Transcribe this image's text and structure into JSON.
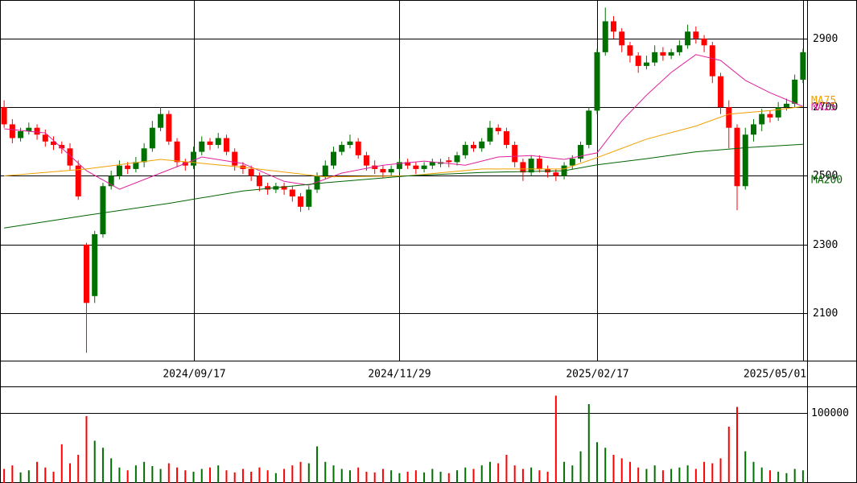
{
  "chart_data": {
    "type": "candlestick",
    "categories": [
      null,
      null,
      null,
      null,
      null,
      null,
      null,
      null,
      null,
      null,
      null,
      null,
      null,
      null,
      null,
      null,
      null,
      null,
      null,
      null,
      null,
      null,
      null,
      "2024/09/17",
      null,
      null,
      null,
      null,
      null,
      null,
      null,
      null,
      null,
      null,
      null,
      null,
      null,
      null,
      null,
      null,
      null,
      null,
      null,
      null,
      null,
      null,
      null,
      null,
      "2024/11/29",
      null,
      null,
      null,
      null,
      null,
      null,
      null,
      null,
      null,
      null,
      null,
      null,
      null,
      null,
      null,
      null,
      null,
      null,
      null,
      null,
      null,
      null,
      null,
      "2025/02/17",
      null,
      null,
      null,
      null,
      null,
      null,
      null,
      null,
      null,
      null,
      null,
      null,
      null,
      null,
      null,
      null,
      null,
      null,
      null,
      null,
      null,
      null,
      null,
      null,
      "2025/05/01"
    ],
    "open": [
      2700,
      2650,
      2610,
      2630,
      2640,
      2620,
      2600,
      2590,
      2580,
      2530,
      2300,
      2150,
      2330,
      2470,
      2500,
      2530,
      2520,
      2540,
      2580,
      2640,
      2680,
      2600,
      2540,
      2530,
      2570,
      2600,
      2590,
      2610,
      2570,
      2530,
      2520,
      2500,
      2470,
      2460,
      2470,
      2460,
      2440,
      2410,
      2460,
      2500,
      2530,
      2570,
      2590,
      2600,
      2560,
      2530,
      2520,
      2510,
      2520,
      2540,
      2530,
      2520,
      2530,
      2535,
      2545,
      2540,
      2560,
      2590,
      2580,
      2600,
      2640,
      2630,
      2590,
      2540,
      2510,
      2550,
      2520,
      2510,
      2500,
      2530,
      2550,
      2590,
      2690,
      2860,
      2950,
      2920,
      2880,
      2850,
      2820,
      2830,
      2860,
      2850,
      2860,
      2880,
      2920,
      2900,
      2880,
      2790,
      2700,
      2640,
      2470,
      2620,
      2650,
      2680,
      2670,
      2700,
      2710,
      2780
    ],
    "high": [
      2720,
      2665,
      2640,
      2655,
      2650,
      2635,
      2615,
      2600,
      2595,
      2545,
      2305,
      2340,
      2480,
      2515,
      2545,
      2540,
      2555,
      2595,
      2660,
      2700,
      2690,
      2610,
      2550,
      2585,
      2615,
      2610,
      2625,
      2620,
      2580,
      2540,
      2530,
      2510,
      2480,
      2480,
      2480,
      2470,
      2450,
      2470,
      2510,
      2545,
      2585,
      2600,
      2620,
      2610,
      2570,
      2545,
      2530,
      2530,
      2550,
      2550,
      2540,
      2540,
      2550,
      2550,
      2555,
      2570,
      2600,
      2600,
      2610,
      2660,
      2650,
      2640,
      2600,
      2550,
      2560,
      2560,
      2530,
      2520,
      2540,
      2560,
      2600,
      2700,
      2870,
      2990,
      2965,
      2930,
      2890,
      2860,
      2850,
      2880,
      2875,
      2870,
      2895,
      2940,
      2935,
      2910,
      2890,
      2800,
      2720,
      2650,
      2640,
      2665,
      2695,
      2690,
      2715,
      2725,
      2795,
      2870
    ],
    "low": [
      2640,
      2595,
      2600,
      2620,
      2605,
      2585,
      2575,
      2565,
      2515,
      2430,
      1985,
      2130,
      2320,
      2460,
      2490,
      2505,
      2510,
      2525,
      2570,
      2630,
      2590,
      2525,
      2515,
      2520,
      2560,
      2575,
      2580,
      2560,
      2515,
      2505,
      2485,
      2455,
      2445,
      2450,
      2445,
      2425,
      2395,
      2400,
      2450,
      2490,
      2520,
      2560,
      2580,
      2550,
      2515,
      2505,
      2495,
      2500,
      2510,
      2520,
      2505,
      2510,
      2520,
      2525,
      2525,
      2530,
      2550,
      2570,
      2570,
      2590,
      2620,
      2580,
      2525,
      2485,
      2500,
      2510,
      2495,
      2485,
      2490,
      2520,
      2540,
      2580,
      2680,
      2850,
      2900,
      2860,
      2830,
      2800,
      2810,
      2820,
      2835,
      2840,
      2850,
      2870,
      2885,
      2860,
      2770,
      2680,
      2580,
      2400,
      2460,
      2600,
      2630,
      2655,
      2660,
      2690,
      2700,
      2770
    ],
    "close": [
      2650,
      2610,
      2630,
      2640,
      2620,
      2600,
      2590,
      2580,
      2530,
      2440,
      2130,
      2330,
      2470,
      2500,
      2530,
      2520,
      2540,
      2580,
      2640,
      2680,
      2600,
      2540,
      2530,
      2570,
      2600,
      2590,
      2610,
      2570,
      2530,
      2520,
      2500,
      2470,
      2460,
      2470,
      2460,
      2440,
      2410,
      2460,
      2500,
      2530,
      2570,
      2590,
      2600,
      2560,
      2530,
      2520,
      2510,
      2520,
      2540,
      2530,
      2520,
      2530,
      2540,
      2540,
      2540,
      2560,
      2590,
      2580,
      2600,
      2640,
      2630,
      2590,
      2540,
      2510,
      2550,
      2520,
      2510,
      2500,
      2530,
      2550,
      2590,
      2690,
      2860,
      2950,
      2920,
      2880,
      2850,
      2820,
      2830,
      2860,
      2850,
      2860,
      2880,
      2920,
      2900,
      2880,
      2790,
      2700,
      2640,
      2470,
      2620,
      2650,
      2680,
      2670,
      2700,
      2710,
      2780,
      2860
    ],
    "volume": [
      20000,
      25000,
      15000,
      18000,
      30000,
      22000,
      16000,
      55000,
      28000,
      40000,
      95000,
      60000,
      50000,
      35000,
      22000,
      18000,
      25000,
      30000,
      24000,
      20000,
      28000,
      22000,
      18000,
      16000,
      20000,
      22000,
      25000,
      18000,
      15000,
      20000,
      16000,
      22000,
      18000,
      14000,
      20000,
      25000,
      30000,
      28000,
      52000,
      30000,
      25000,
      20000,
      18000,
      22000,
      16000,
      15000,
      20000,
      18000,
      14000,
      16000,
      18000,
      15000,
      20000,
      16000,
      14000,
      18000,
      22000,
      20000,
      25000,
      30000,
      28000,
      40000,
      25000,
      20000,
      22000,
      18000,
      16000,
      124000,
      30000,
      25000,
      45000,
      112000,
      58000,
      50000,
      40000,
      35000,
      30000,
      22000,
      20000,
      25000,
      18000,
      20000,
      22000,
      25000,
      20000,
      30000,
      28000,
      35000,
      80000,
      108000,
      45000,
      30000,
      22000,
      18000,
      16000,
      14000,
      20000,
      18000
    ],
    "up_color": "#007000",
    "down_color": "#ff0000",
    "ylim": [
      1962,
      3012
    ],
    "yticks": [
      2100,
      2300,
      2500,
      2700,
      2900
    ],
    "grid": true,
    "volume_ylim": [
      0,
      136000
    ],
    "volume_yticks": [
      100000
    ],
    "ma": [
      {
        "name": "MA25",
        "color": "#e0209c",
        "x": [
          0,
          5,
          10,
          14,
          19,
          24,
          29,
          34,
          37,
          41,
          46,
          51,
          56,
          60,
          64,
          68,
          72,
          75,
          78,
          81,
          84,
          87,
          90,
          93,
          96,
          97
        ],
        "values": [
          2637,
          2625,
          2515,
          2461,
          2508,
          2555,
          2536,
          2484,
          2473,
          2508,
          2531,
          2543,
          2531,
          2555,
          2559,
          2548,
          2567,
          2660,
          2735,
          2801,
          2853,
          2836,
          2778,
          2742,
          2712,
          2702
        ]
      },
      {
        "name": "MA75",
        "color": "#f0a000",
        "x": [
          0,
          10,
          19,
          29,
          39,
          49,
          58,
          68,
          72,
          78,
          84,
          88,
          93,
          97
        ],
        "values": [
          2500,
          2520,
          2548,
          2525,
          2497,
          2500,
          2520,
          2520,
          2553,
          2607,
          2645,
          2680,
          2690,
          2702
        ]
      },
      {
        "name": "MA200",
        "color": "#006400",
        "x": [
          0,
          10,
          20,
          29,
          39,
          49,
          58,
          68,
          72,
          78,
          84,
          90,
          97
        ],
        "values": [
          2348,
          2385,
          2420,
          2456,
          2480,
          2500,
          2510,
          2515,
          2532,
          2550,
          2570,
          2582,
          2592
        ]
      }
    ]
  }
}
